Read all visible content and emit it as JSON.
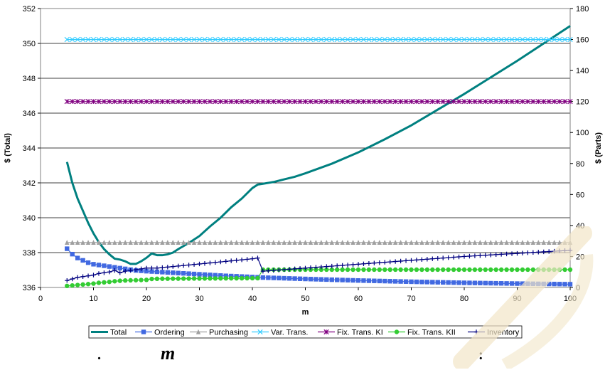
{
  "chart_data": {
    "type": "line",
    "xlabel": "m",
    "ylabel_left": "$ (Total)",
    "ylabel_right": "$ (Parts)",
    "xlim": [
      0,
      100
    ],
    "ylim_left": [
      336,
      352
    ],
    "ylim_right": [
      0,
      180
    ],
    "x_ticks": [
      "0",
      "10",
      "20",
      "30",
      "40",
      "50",
      "60",
      "70",
      "80",
      "90",
      "100"
    ],
    "y_left_ticks": [
      "336",
      "338",
      "340",
      "342",
      "344",
      "346",
      "348",
      "350",
      "352"
    ],
    "y_right_ticks": [
      "0",
      "20",
      "40",
      "60",
      "80",
      "100",
      "120",
      "140",
      "160",
      "180"
    ],
    "grid": "horizontal",
    "legend_position": "bottom",
    "series": [
      {
        "name": "Total",
        "axis": "left",
        "color": "#008080",
        "marker": "none",
        "x": [
          5,
          6,
          7,
          8,
          9,
          10,
          11,
          12,
          13,
          14,
          15,
          16,
          17,
          18,
          19,
          20,
          21,
          22,
          23,
          24,
          25,
          26,
          28,
          30,
          32,
          34,
          36,
          38,
          40,
          41,
          42,
          44,
          46,
          48,
          50,
          55,
          60,
          65,
          70,
          75,
          80,
          85,
          90,
          95,
          100
        ],
        "y": [
          343.2,
          342.0,
          341.1,
          340.4,
          339.7,
          339.1,
          338.6,
          338.2,
          337.9,
          337.65,
          337.6,
          337.5,
          337.35,
          337.35,
          337.5,
          337.7,
          337.95,
          337.85,
          337.85,
          337.9,
          338.0,
          338.2,
          338.55,
          338.95,
          339.5,
          340.0,
          340.6,
          341.1,
          341.7,
          341.9,
          341.95,
          342.05,
          342.2,
          342.35,
          342.55,
          343.1,
          343.75,
          344.5,
          345.3,
          346.2,
          347.1,
          348.05,
          349.0,
          350.0,
          351.0
        ]
      },
      {
        "name": "Ordering",
        "axis": "right",
        "color": "#4169E1",
        "marker": "square",
        "x": [
          5,
          6,
          7,
          8,
          9,
          10,
          12,
          14,
          16,
          18,
          20,
          25,
          30,
          35,
          41,
          42,
          50,
          60,
          70,
          80,
          90,
          100
        ],
        "y": [
          25,
          21.5,
          19,
          17.5,
          16,
          15,
          14,
          13,
          12,
          11,
          10.5,
          9.5,
          8.5,
          7.5,
          6.6,
          6.4,
          5.5,
          4.5,
          3.7,
          3.0,
          2.5,
          2.1
        ]
      },
      {
        "name": "Purchasing",
        "axis": "right",
        "color": "#A0A0A0",
        "marker": "triangle",
        "x": [
          5,
          100
        ],
        "y": [
          29,
          29
        ]
      },
      {
        "name": "Var. Trans.",
        "axis": "right",
        "color": "#33CCFF",
        "marker": "x",
        "x": [
          5,
          100
        ],
        "y": [
          160,
          160
        ]
      },
      {
        "name": "Fix. Trans. KI",
        "axis": "right",
        "color": "#800080",
        "marker": "asterisk",
        "x": [
          5,
          100
        ],
        "y": [
          120,
          120
        ]
      },
      {
        "name": "Fix. Trans. KII",
        "axis": "right",
        "color": "#33CC33",
        "marker": "circle",
        "x": [
          5,
          6,
          7,
          8,
          9,
          10,
          11,
          12,
          13,
          14,
          15,
          16,
          17,
          18,
          19,
          20,
          21,
          22,
          41,
          42,
          100
        ],
        "y": [
          1.0,
          1.3,
          1.6,
          1.9,
          2.2,
          2.5,
          3.0,
          3.3,
          3.6,
          4.0,
          4.3,
          4.5,
          4.6,
          4.7,
          4.8,
          4.9,
          5.5,
          5.6,
          6.0,
          11.5,
          11.5
        ]
      },
      {
        "name": "Inventory",
        "axis": "right",
        "color": "#000080",
        "marker": "plus",
        "x": [
          5,
          6,
          7,
          8,
          9,
          10,
          11,
          12,
          13,
          14,
          15,
          16,
          17,
          18,
          19,
          20,
          22,
          25,
          28,
          31,
          34,
          37,
          40,
          41,
          42,
          50,
          60,
          70,
          80,
          90,
          100
        ],
        "y": [
          4.5,
          5.5,
          6.5,
          7.0,
          7.5,
          8.0,
          9.0,
          9.5,
          10.0,
          11.0,
          9.5,
          10.5,
          11.0,
          11.5,
          12.0,
          12.5,
          12.5,
          13.5,
          14.5,
          15.5,
          16.5,
          17.5,
          18.5,
          19.0,
          10.5,
          12.5,
          15.0,
          17.5,
          20.0,
          22.0,
          24.0
        ]
      }
    ]
  },
  "caption": {
    "dot": ".",
    "m": "m",
    "colon": ":"
  }
}
